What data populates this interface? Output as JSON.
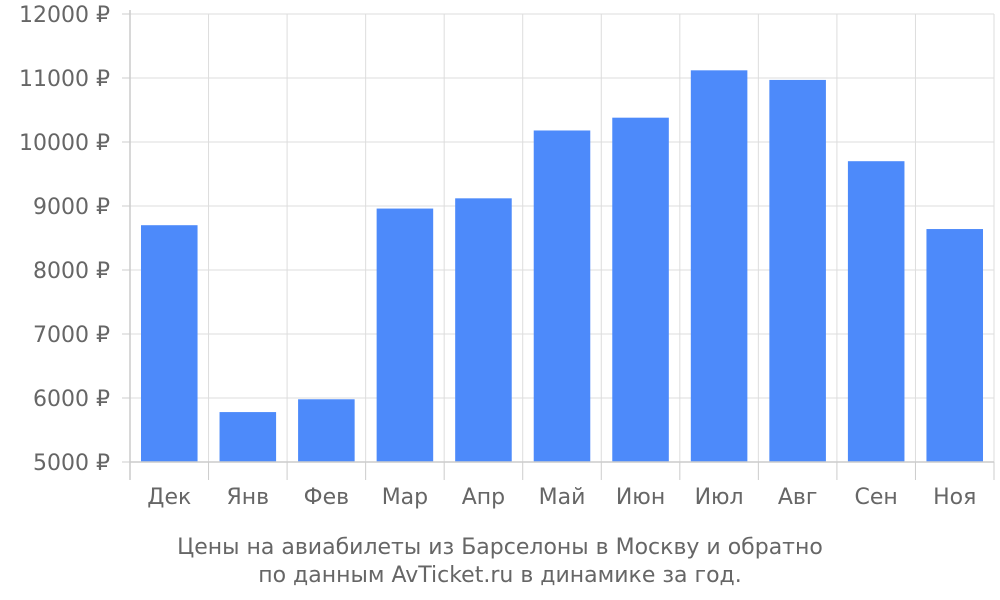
{
  "chart_data": {
    "type": "bar",
    "categories": [
      "Дек",
      "Янв",
      "Фев",
      "Мар",
      "Апр",
      "Май",
      "Июн",
      "Июл",
      "Авг",
      "Сен",
      "Ноя"
    ],
    "values": [
      8700,
      5780,
      5980,
      8960,
      9120,
      10180,
      10380,
      11120,
      10970,
      9700,
      8640
    ],
    "ylim": [
      5000,
      12000
    ],
    "yticks": [
      5000,
      6000,
      7000,
      8000,
      9000,
      10000,
      11000,
      12000
    ],
    "y_tick_labels": [
      "5000 ₽",
      "6000 ₽",
      "7000 ₽",
      "8000 ₽",
      "9000 ₽",
      "10000 ₽",
      "11000 ₽",
      "12000 ₽"
    ],
    "grid": true,
    "bar_color": "#4d8afa",
    "caption_line1": "Цены на авиабилеты из Барселоны в Москву и обратно",
    "caption_line2": "по данным AvTicket.ru в динамике за год."
  }
}
